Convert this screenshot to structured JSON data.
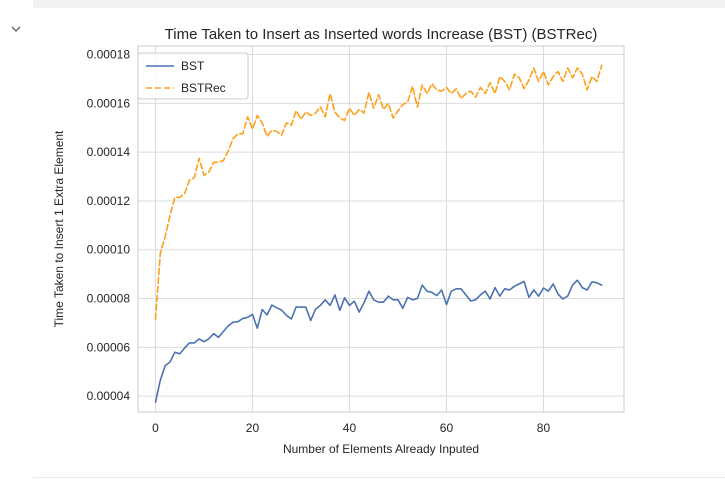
{
  "colors": {
    "bst": "#4c72b0",
    "bstrec": "#ff9f1a",
    "grid": "#dcdcdc",
    "axes_frame": "#cccccc",
    "cell_chrome": "#f2f2f2"
  },
  "cell": {
    "collapse_icon": "chevron-down-icon"
  },
  "chart_data": {
    "type": "line",
    "title": "Time Taken to Insert as Inserted words Increase (BST) (BSTRec)",
    "xlabel": "Number of Elements Already Inputed",
    "ylabel": "Time Taken to Insert 1 Extra Element",
    "xlim": [
      -3.6,
      96.6
    ],
    "ylim": [
      3.35e-05,
      0.0001835
    ],
    "xticks": [
      0,
      20,
      40,
      60,
      80
    ],
    "xtick_labels": [
      "0",
      "20",
      "40",
      "60",
      "80"
    ],
    "yticks": [
      4e-05,
      6e-05,
      8e-05,
      0.0001,
      0.00012,
      0.00014,
      0.00016,
      0.00018
    ],
    "ytick_labels": [
      "0.00004",
      "0.00006",
      "0.00008",
      "0.00010",
      "0.00012",
      "0.00014",
      "0.00016",
      "0.00018"
    ],
    "grid": true,
    "legend_position": "top-left",
    "series": [
      {
        "name": "BST",
        "style": "solid",
        "x": [
          0,
          1,
          2,
          3,
          4,
          5,
          6,
          7,
          8,
          9,
          10,
          11,
          12,
          13,
          14,
          15,
          16,
          17,
          18,
          19,
          20,
          21,
          22,
          23,
          24,
          25,
          26,
          27,
          28,
          29,
          30,
          31,
          32,
          33,
          34,
          35,
          36,
          37,
          38,
          39,
          40,
          41,
          42,
          43,
          44,
          45,
          46,
          47,
          48,
          49,
          50,
          51,
          52,
          53,
          54,
          55,
          56,
          57,
          58,
          59,
          60,
          61,
          62,
          63,
          64,
          65,
          66,
          67,
          68,
          69,
          70,
          71,
          72,
          73,
          74,
          75,
          76,
          77,
          78,
          79,
          80,
          81,
          82,
          83,
          84,
          85,
          86,
          87,
          88,
          89,
          90,
          91,
          92
        ],
        "y": [
          3.75e-05,
          4.65e-05,
          5.25e-05,
          5.4e-05,
          5.8e-05,
          5.73e-05,
          5.97e-05,
          6.18e-05,
          6.18e-05,
          6.34e-05,
          6.23e-05,
          6.35e-05,
          6.56e-05,
          6.41e-05,
          6.65e-05,
          6.88e-05,
          7.03e-05,
          7.05e-05,
          7.18e-05,
          7.23e-05,
          7.35e-05,
          6.78e-05,
          7.55e-05,
          7.33e-05,
          7.73e-05,
          7.62e-05,
          7.53e-05,
          7.31e-05,
          7.16e-05,
          7.65e-05,
          7.65e-05,
          7.65e-05,
          7.1e-05,
          7.56e-05,
          7.72e-05,
          7.95e-05,
          7.72e-05,
          8.15e-05,
          7.52e-05,
          8.03e-05,
          7.72e-05,
          7.89e-05,
          7.45e-05,
          7.82e-05,
          8.3e-05,
          7.95e-05,
          7.85e-05,
          7.85e-05,
          8.1e-05,
          7.95e-05,
          7.95e-05,
          7.6e-05,
          8.05e-05,
          7.95e-05,
          8e-05,
          8.55e-05,
          8.3e-05,
          8.25e-05,
          8.12e-05,
          8.35e-05,
          7.75e-05,
          8.3e-05,
          8.4e-05,
          8.4e-05,
          8.15e-05,
          7.9e-05,
          7.95e-05,
          8.15e-05,
          8.3e-05,
          7.98e-05,
          8.45e-05,
          8.1e-05,
          8.4e-05,
          8.35e-05,
          8.5e-05,
          8.6e-05,
          8.7e-05,
          8.05e-05,
          8.35e-05,
          8.1e-05,
          8.43e-05,
          8.3e-05,
          8.6e-05,
          8.18e-05,
          7.98e-05,
          8.1e-05,
          8.55e-05,
          8.75e-05,
          8.45e-05,
          8.35e-05,
          8.68e-05,
          8.65e-05,
          8.55e-05
        ]
      },
      {
        "name": "BSTRec",
        "style": "dashed",
        "x": [
          0,
          1,
          2,
          3,
          4,
          5,
          6,
          7,
          8,
          9,
          10,
          11,
          12,
          13,
          14,
          15,
          16,
          17,
          18,
          19,
          20,
          21,
          22,
          23,
          24,
          25,
          26,
          27,
          28,
          29,
          30,
          31,
          32,
          33,
          34,
          35,
          36,
          37,
          38,
          39,
          40,
          41,
          42,
          43,
          44,
          45,
          46,
          47,
          48,
          49,
          50,
          51,
          52,
          53,
          54,
          55,
          56,
          57,
          58,
          59,
          60,
          61,
          62,
          63,
          64,
          65,
          66,
          67,
          68,
          69,
          70,
          71,
          72,
          73,
          74,
          75,
          76,
          77,
          78,
          79,
          80,
          81,
          82,
          83,
          84,
          85,
          86,
          87,
          88,
          89,
          90,
          91,
          92
        ],
        "y": [
          7.15e-05,
          9.85e-05,
          0.0001055,
          0.000114,
          0.0001215,
          0.0001215,
          0.000123,
          0.0001285,
          0.0001295,
          0.0001375,
          0.0001305,
          0.0001318,
          0.0001358,
          0.000136,
          0.0001365,
          0.0001405,
          0.0001455,
          0.0001475,
          0.0001475,
          0.0001545,
          0.0001495,
          0.000155,
          0.000152,
          0.0001465,
          0.000149,
          0.0001485,
          0.000147,
          0.000152,
          0.000151,
          0.000157,
          0.0001535,
          0.0001565,
          0.000155,
          0.000156,
          0.0001585,
          0.0001545,
          0.000164,
          0.0001565,
          0.000154,
          0.000153,
          0.000158,
          0.000155,
          0.0001575,
          0.000156,
          0.0001645,
          0.000158,
          0.0001635,
          0.0001575,
          0.00016,
          0.000154,
          0.000157,
          0.0001595,
          0.0001605,
          0.000167,
          0.0001585,
          0.0001675,
          0.000164,
          0.000168,
          0.0001655,
          0.000165,
          0.0001665,
          0.000164,
          0.000166,
          0.000162,
          0.000164,
          0.000165,
          0.0001625,
          0.0001665,
          0.000164,
          0.0001685,
          0.000164,
          0.000171,
          0.000169,
          0.0001655,
          0.000172,
          0.0001705,
          0.000166,
          0.0001695,
          0.0001745,
          0.000169,
          0.000173,
          0.0001675,
          0.000171,
          0.000173,
          0.000169,
          0.0001745,
          0.0001705,
          0.0001745,
          0.000172,
          0.0001655,
          0.000171,
          0.000169,
          0.0001755
        ]
      }
    ]
  }
}
